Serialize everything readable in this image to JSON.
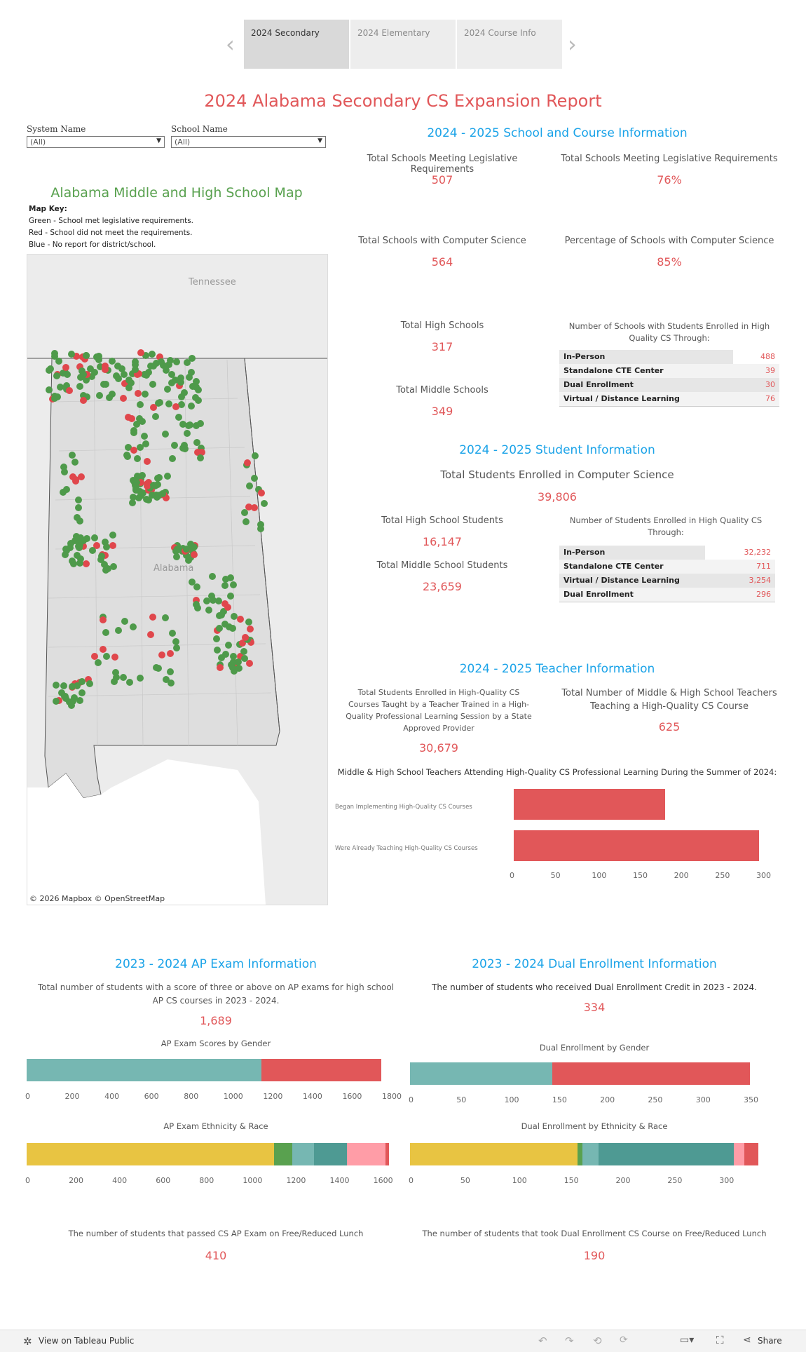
{
  "tabs": [
    "2024 Secondary",
    "2024 Elementary",
    "2024 Course Info"
  ],
  "nav": {
    "prev": "‹",
    "next": "›"
  },
  "page_title": "2024 Alabama Secondary CS Expansion Report",
  "filters": {
    "system_label": "System Name",
    "system_value": "(All)",
    "school_label": "School Name",
    "school_value": "(All)"
  },
  "map": {
    "title": "Alabama Middle and High School Map",
    "key_title": "Map Key:",
    "key_green": "Green - School met legislative requirements.",
    "key_red": "Red - School did not meet the requirements.",
    "key_blue": "Blue - No report for district/school.",
    "state_label_top": "Tennessee",
    "state_label_mid": "Alabama",
    "attribution": "© 2026 Mapbox  © OpenStreetMap",
    "colors": {
      "met": "#4e9a4a",
      "not_met": "#e0474c",
      "land": "#e9e9e9",
      "state": "#dcdcdc"
    }
  },
  "school_info": {
    "title": "2024 - 2025 School and Course Information",
    "metrics": [
      {
        "label": "Total Schools Meeting Legislative Requirements",
        "value": "507"
      },
      {
        "label": "Total Schools Meeting Legislative Requirements",
        "value": "76%"
      },
      {
        "label": "Total Schools with Computer Science",
        "value": "564"
      },
      {
        "label": "Percentage of Schools with Computer Science",
        "value": "85%"
      },
      {
        "label": "Total High Schools",
        "value": "317"
      },
      {
        "label": "Total Middle Schools",
        "value": "349"
      }
    ],
    "table_title": "Number of Schools with Students Enrolled in High Quality CS Through:",
    "table": [
      {
        "name": "In-Person",
        "value": "488"
      },
      {
        "name": "Standalone CTE Center",
        "value": "39"
      },
      {
        "name": "Dual Enrollment",
        "value": "30"
      },
      {
        "name": "Virtual / Distance Learning",
        "value": "76"
      }
    ]
  },
  "student_info": {
    "title": "2024 - 2025 Student Information",
    "total_label": "Total Students Enrolled in Computer Science",
    "total_value": "39,806",
    "hs_label": "Total High School Students",
    "hs_value": "16,147",
    "ms_label": "Total Middle School Students",
    "ms_value": "23,659",
    "table_title": "Number of Students Enrolled in High Quality CS Through:",
    "table": [
      {
        "name": "In-Person",
        "value": "32,232"
      },
      {
        "name": "Standalone CTE Center",
        "value": "711"
      },
      {
        "name": "Virtual / Distance Learning",
        "value": "3,254"
      },
      {
        "name": "Dual Enrollment",
        "value": "296"
      }
    ]
  },
  "teacher_info": {
    "title": "2024 - 2025 Teacher Information",
    "students_label": "Total Students Enrolled in High-Quality CS Courses Taught by a Teacher Trained in a High-Quality Professional Learning Session by a State Approved Provider",
    "students_value": "30,679",
    "teachers_label": "Total Number of Middle & High School Teachers Teaching a High-Quality CS Course",
    "teachers_value": "625",
    "chart_title": "Middle & High School Teachers Attending High-Quality CS Professional Learning During the Summer of 2024:"
  },
  "ap_info": {
    "title": "2023 - 2024 AP Exam Information",
    "desc": "Total number of students with a score of three or above on AP exams for high school AP CS courses in 2023 - 2024.",
    "value": "1,689",
    "gender_title": "AP Exam Scores by Gender",
    "eth_title": "AP Exam Ethnicity & Race",
    "frl_label": "The number of students that passed CS AP Exam on Free/Reduced Lunch",
    "frl_value": "410"
  },
  "de_info": {
    "title": "2023 - 2024 Dual Enrollment Information",
    "desc": "The number of students who received Dual Enrollment Credit in 2023 - 2024.",
    "value": "334",
    "gender_title": "Dual Enrollment by Gender",
    "eth_title": "Dual Enrollment by Ethnicity & Race",
    "frl_label": "The number of students that took Dual Enrollment CS Course on Free/Reduced Lunch",
    "frl_value": "190"
  },
  "chart_data": [
    {
      "type": "bar",
      "orientation": "horizontal",
      "categories": [
        "Began Implementing High-Quality CS Courses",
        "Were Already Teaching High-Quality CS Courses"
      ],
      "values": [
        184,
        298
      ],
      "xlim": [
        0,
        300
      ],
      "ticks": [
        0,
        50,
        100,
        150,
        200,
        250,
        300
      ],
      "color": "#e15759"
    },
    {
      "type": "bar",
      "orientation": "horizontal-stacked",
      "segments": [
        {
          "value": 1165,
          "color": "#76b7b2"
        },
        {
          "value": 598,
          "color": "#e15759"
        }
      ],
      "xlim": [
        0,
        1800
      ],
      "ticks": [
        0,
        200,
        400,
        600,
        800,
        1000,
        1200,
        1400,
        1600,
        1800
      ]
    },
    {
      "type": "bar",
      "orientation": "horizontal-stacked",
      "segments": [
        {
          "value": 146,
          "color": "#76b7b2"
        },
        {
          "value": 203,
          "color": "#e15759"
        }
      ],
      "xlim": [
        0,
        350
      ],
      "ticks": [
        0,
        50,
        100,
        150,
        200,
        250,
        300,
        350
      ]
    },
    {
      "type": "bar",
      "orientation": "horizontal-stacked",
      "segments": [
        {
          "value": 1120,
          "color": "#e8c442"
        },
        {
          "value": 82,
          "color": "#59a14f"
        },
        {
          "value": 98,
          "color": "#76b7b2"
        },
        {
          "value": 150,
          "color": "#4e9a93"
        },
        {
          "value": 175,
          "color": "#ff9da7"
        },
        {
          "value": 16,
          "color": "#e15759"
        }
      ],
      "xlim": [
        0,
        1640
      ],
      "ticks": [
        0,
        200,
        400,
        600,
        800,
        1000,
        1200,
        1400,
        1600
      ]
    },
    {
      "type": "bar",
      "orientation": "horizontal-stacked",
      "segments": [
        {
          "value": 159,
          "color": "#e8c442"
        },
        {
          "value": 5,
          "color": "#59a14f"
        },
        {
          "value": 15,
          "color": "#76b7b2"
        },
        {
          "value": 129,
          "color": "#4e9a93"
        },
        {
          "value": 10,
          "color": "#ff9da7"
        },
        {
          "value": 13,
          "color": "#e15759"
        }
      ],
      "xlim": [
        0,
        335
      ],
      "ticks": [
        0,
        50,
        100,
        150,
        200,
        250,
        300
      ]
    }
  ],
  "footer": {
    "view_on": "View on Tableau Public",
    "share": "Share"
  }
}
